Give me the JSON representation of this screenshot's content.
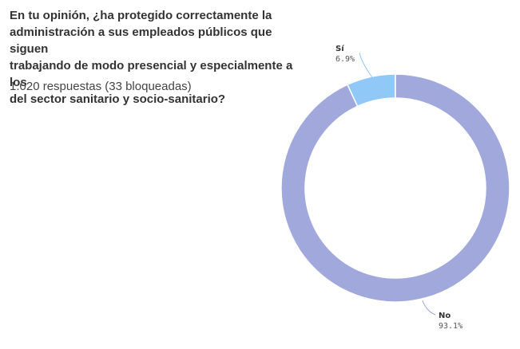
{
  "question": {
    "title_lines": [
      "En tu opinión, ¿ha protegido correctamente la",
      "administración a sus empleados públicos que siguen",
      "trabajando de modo presencial y especialmente a los",
      "del sector sanitario y socio-sanitario?"
    ],
    "responses_text": "1.020 respuestas (33 bloqueadas)"
  },
  "chart_data": {
    "type": "pie",
    "donut": true,
    "categories": [
      "Sí",
      "No"
    ],
    "values": [
      6.9,
      93.1
    ],
    "labels": [
      "6.9%",
      "93.1%"
    ],
    "colors": [
      "#90c8f7",
      "#a0a8dc"
    ],
    "legend": "none"
  }
}
